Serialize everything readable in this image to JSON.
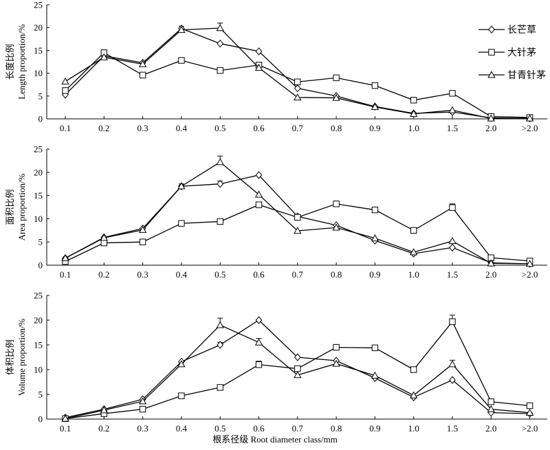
{
  "figure": {
    "xlabel": "根系径级 Root diameter class/mm"
  },
  "legend": {
    "items": [
      {
        "label": "长芒草",
        "marker": "diamond"
      },
      {
        "label": "大针茅",
        "marker": "square"
      },
      {
        "label": "甘青针茅",
        "marker": "triangle"
      }
    ]
  },
  "chart_data": [
    {
      "type": "line",
      "ylabel_cn": "长度比例",
      "ylabel_en": "Length proportion/%",
      "ylim": [
        0,
        25
      ],
      "yticks": [
        0,
        5,
        10,
        15,
        20,
        25
      ],
      "categories": [
        "0.1",
        "0.2",
        "0.3",
        "0.4",
        "0.5",
        "0.6",
        "0.7",
        "0.8",
        "0.9",
        "1.0",
        "1.5",
        "2.0",
        ">2.0"
      ],
      "legend_position": "top-right",
      "series": [
        {
          "name": "长芒草",
          "marker": "diamond",
          "values": [
            5.3,
            13.8,
            12.3,
            19.8,
            16.5,
            14.8,
            6.7,
            5.0,
            2.7,
            1.2,
            1.5,
            0.2,
            0.1
          ],
          "errors": [
            0,
            0,
            0,
            0.5,
            0,
            0,
            0,
            0,
            0,
            0,
            0,
            0,
            0
          ]
        },
        {
          "name": "大针茅",
          "marker": "square",
          "values": [
            6.2,
            14.5,
            9.6,
            12.8,
            10.6,
            11.8,
            8.1,
            9.0,
            7.3,
            4.1,
            5.6,
            0.5,
            0.3
          ],
          "errors": [
            0,
            0.4,
            0,
            0,
            0,
            0,
            0,
            0,
            0,
            0,
            0,
            0,
            0
          ]
        },
        {
          "name": "甘青针茅",
          "marker": "triangle",
          "values": [
            8.2,
            13.5,
            12.0,
            19.5,
            19.9,
            11.2,
            4.7,
            4.6,
            2.6,
            1.1,
            1.9,
            0.1,
            0.1
          ],
          "errors": [
            0,
            0,
            0,
            0,
            1.1,
            0,
            0,
            0,
            0,
            0,
            0,
            0,
            0
          ]
        }
      ]
    },
    {
      "type": "line",
      "ylabel_cn": "面积比例",
      "ylabel_en": "Area proportion/%",
      "ylim": [
        0,
        25
      ],
      "yticks": [
        0,
        5,
        10,
        15,
        20,
        25
      ],
      "categories": [
        "0.1",
        "0.2",
        "0.3",
        "0.4",
        "0.5",
        "0.6",
        "0.7",
        "0.8",
        "0.9",
        "1.0",
        "1.5",
        "2.0",
        ">2.0"
      ],
      "series": [
        {
          "name": "长芒草",
          "marker": "diamond",
          "values": [
            1.5,
            6.0,
            7.9,
            17.0,
            17.5,
            19.4,
            10.5,
            8.6,
            5.3,
            2.5,
            3.8,
            0.5,
            0.3
          ],
          "errors": [
            0,
            0,
            0,
            0.5,
            0.6,
            0,
            0,
            0,
            0,
            0,
            0,
            0,
            0
          ]
        },
        {
          "name": "大针茅",
          "marker": "square",
          "values": [
            0.8,
            4.8,
            5.0,
            9.0,
            9.4,
            13.0,
            10.3,
            13.2,
            11.9,
            7.5,
            12.4,
            1.6,
            0.9
          ],
          "errors": [
            0,
            0,
            0,
            0,
            0,
            0,
            0,
            0,
            0,
            0,
            0.8,
            0,
            0
          ]
        },
        {
          "name": "甘青针茅",
          "marker": "triangle",
          "values": [
            1.5,
            5.9,
            7.6,
            17.0,
            22.2,
            15.2,
            7.4,
            8.1,
            5.8,
            2.8,
            5.2,
            0.4,
            0.3
          ],
          "errors": [
            0,
            0,
            0,
            0,
            1.3,
            0,
            0,
            0,
            0,
            0,
            0,
            0,
            0
          ]
        }
      ]
    },
    {
      "type": "line",
      "ylabel_cn": "体积比例",
      "ylabel_en": "Volume proportion/%",
      "ylim": [
        0,
        25
      ],
      "yticks": [
        0,
        5,
        10,
        15,
        20,
        25
      ],
      "categories": [
        "0.1",
        "0.2",
        "0.3",
        "0.4",
        "0.5",
        "0.6",
        "0.7",
        "0.8",
        "0.9",
        "1.0",
        "1.5",
        "2.0",
        ">2.0"
      ],
      "series": [
        {
          "name": "长芒草",
          "marker": "diamond",
          "values": [
            0.3,
            2.0,
            4.0,
            11.6,
            15.0,
            20.0,
            12.5,
            11.8,
            8.3,
            4.4,
            7.9,
            1.3,
            1.1
          ],
          "errors": [
            0,
            0,
            0,
            0,
            0.5,
            0,
            0,
            0,
            0,
            0,
            0,
            0,
            0
          ]
        },
        {
          "name": "大针茅",
          "marker": "square",
          "values": [
            0.1,
            1.1,
            2.0,
            4.7,
            6.4,
            11.0,
            10.2,
            14.5,
            14.4,
            10.0,
            19.7,
            3.5,
            2.7
          ],
          "errors": [
            0,
            0,
            0,
            0,
            0,
            0.7,
            0,
            0,
            0,
            0,
            1.3,
            0,
            0
          ]
        },
        {
          "name": "甘青针茅",
          "marker": "triangle",
          "values": [
            0.1,
            1.8,
            3.6,
            11.1,
            19.0,
            15.5,
            8.9,
            11.2,
            8.8,
            4.8,
            11.1,
            2.0,
            1.3
          ],
          "errors": [
            0,
            0,
            0,
            0,
            1.4,
            0.8,
            0,
            0,
            0,
            0,
            0.8,
            0,
            0
          ]
        }
      ]
    }
  ]
}
